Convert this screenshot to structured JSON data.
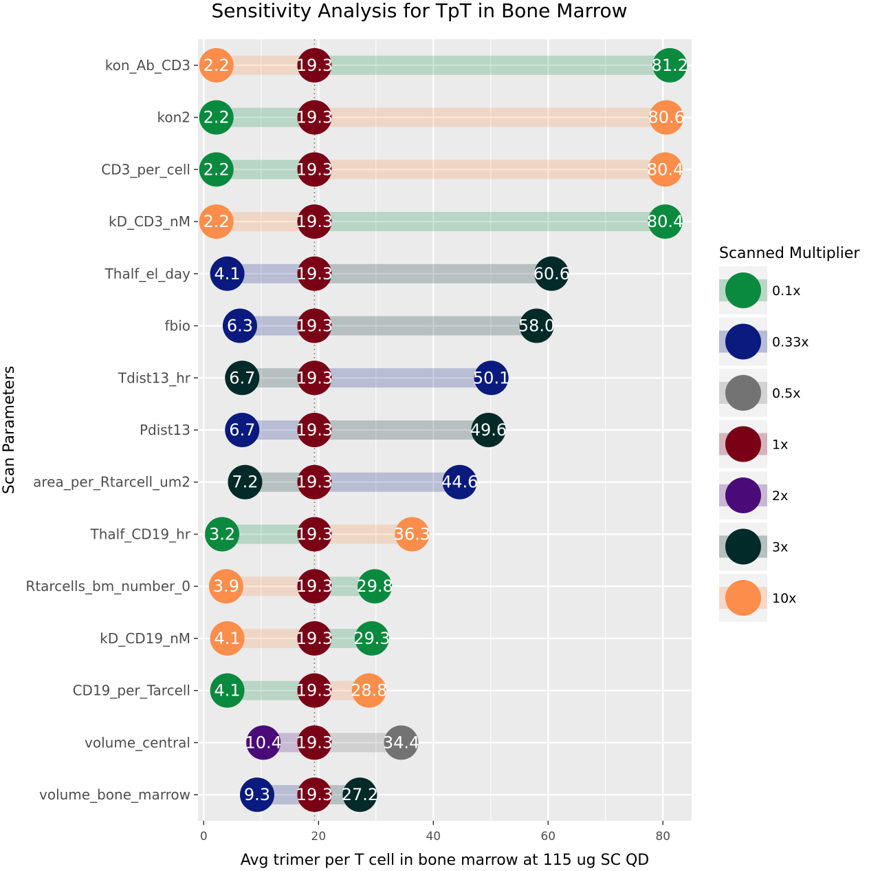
{
  "chart_data": {
    "type": "dumbbell",
    "title": "Sensitivity Analysis for TpT in Bone Marrow",
    "xlabel": "Avg trimer per T cell in bone marrow at 115 ug SC QD",
    "ylabel": "Scan Parameters",
    "xlim": [
      -1,
      85
    ],
    "xticks": [
      0,
      20,
      40,
      60,
      80
    ],
    "reference_line": 19.3,
    "grid": true,
    "legend_position": "right",
    "legend": {
      "title": "Scanned Multiplier",
      "entries": [
        {
          "label": "0.1x",
          "color": "#0a8a3e"
        },
        {
          "label": "0.33x",
          "color": "#0a1a7e"
        },
        {
          "label": "0.5x",
          "color": "#737373"
        },
        {
          "label": "1x",
          "color": "#7a0016"
        },
        {
          "label": "2x",
          "color": "#4a0a78"
        },
        {
          "label": "3x",
          "color": "#012a28"
        },
        {
          "label": "10x",
          "color": "#fc8d4b"
        }
      ]
    },
    "rows": [
      {
        "param": "kon_Ab_CD3",
        "low": {
          "value": 2.2,
          "label": "2.2",
          "mult": "10x"
        },
        "base": {
          "value": 19.3,
          "label": "19.3"
        },
        "high": {
          "value": 81.2,
          "label": "81.2",
          "mult": "0.1x"
        }
      },
      {
        "param": "kon2",
        "low": {
          "value": 2.2,
          "label": "2.2",
          "mult": "0.1x"
        },
        "base": {
          "value": 19.3,
          "label": "19.3"
        },
        "high": {
          "value": 80.6,
          "label": "80.6",
          "mult": "10x"
        }
      },
      {
        "param": "CD3_per_cell",
        "low": {
          "value": 2.2,
          "label": "2.2",
          "mult": "0.1x"
        },
        "base": {
          "value": 19.3,
          "label": "19.3"
        },
        "high": {
          "value": 80.4,
          "label": "80.4",
          "mult": "10x"
        }
      },
      {
        "param": "kD_CD3_nM",
        "low": {
          "value": 2.2,
          "label": "2.2",
          "mult": "10x"
        },
        "base": {
          "value": 19.3,
          "label": "19.3"
        },
        "high": {
          "value": 80.4,
          "label": "80.4",
          "mult": "0.1x"
        }
      },
      {
        "param": "Thalf_el_day",
        "low": {
          "value": 4.1,
          "label": "4.1",
          "mult": "0.33x"
        },
        "base": {
          "value": 19.3,
          "label": "19.3"
        },
        "high": {
          "value": 60.6,
          "label": "60.6",
          "mult": "3x"
        }
      },
      {
        "param": "fbio",
        "low": {
          "value": 6.3,
          "label": "6.3",
          "mult": "0.33x"
        },
        "base": {
          "value": 19.3,
          "label": "19.3"
        },
        "high": {
          "value": 58.0,
          "label": "58.0",
          "mult": "3x"
        }
      },
      {
        "param": "Tdist13_hr",
        "low": {
          "value": 6.7,
          "label": "6.7",
          "mult": "3x"
        },
        "base": {
          "value": 19.3,
          "label": "19.3"
        },
        "high": {
          "value": 50.1,
          "label": "50.1",
          "mult": "0.33x"
        }
      },
      {
        "param": "Pdist13",
        "low": {
          "value": 6.7,
          "label": "6.7",
          "mult": "0.33x"
        },
        "base": {
          "value": 19.3,
          "label": "19.3"
        },
        "high": {
          "value": 49.6,
          "label": "49.6",
          "mult": "3x"
        }
      },
      {
        "param": "area_per_Rtarcell_um2",
        "low": {
          "value": 7.2,
          "label": "7.2",
          "mult": "3x"
        },
        "base": {
          "value": 19.3,
          "label": "19.3"
        },
        "high": {
          "value": 44.6,
          "label": "44.6",
          "mult": "0.33x"
        }
      },
      {
        "param": "Thalf_CD19_hr",
        "low": {
          "value": 3.2,
          "label": "3.2",
          "mult": "0.1x"
        },
        "base": {
          "value": 19.3,
          "label": "19.3"
        },
        "high": {
          "value": 36.3,
          "label": "36.3",
          "mult": "10x"
        }
      },
      {
        "param": "Rtarcells_bm_number_0",
        "low": {
          "value": 3.9,
          "label": "3.9",
          "mult": "10x"
        },
        "base": {
          "value": 19.3,
          "label": "19.3"
        },
        "high": {
          "value": 29.8,
          "label": "29.8",
          "mult": "0.1x"
        }
      },
      {
        "param": "kD_CD19_nM",
        "low": {
          "value": 4.1,
          "label": "4.1",
          "mult": "10x"
        },
        "base": {
          "value": 19.3,
          "label": "19.3"
        },
        "high": {
          "value": 29.3,
          "label": "29.3",
          "mult": "0.1x"
        }
      },
      {
        "param": "CD19_per_Tarcell",
        "low": {
          "value": 4.1,
          "label": "4.1",
          "mult": "0.1x"
        },
        "base": {
          "value": 19.3,
          "label": "19.3"
        },
        "high": {
          "value": 28.8,
          "label": "28.8",
          "mult": "10x"
        }
      },
      {
        "param": "volume_central",
        "low": {
          "value": 10.4,
          "label": "10.4",
          "mult": "2x"
        },
        "base": {
          "value": 19.3,
          "label": "19.3"
        },
        "high": {
          "value": 34.4,
          "label": "34.4",
          "mult": "0.5x"
        }
      },
      {
        "param": "volume_bone_marrow",
        "low": {
          "value": 9.3,
          "label": "9.3",
          "mult": "0.33x"
        },
        "base": {
          "value": 19.3,
          "label": "19.3"
        },
        "high": {
          "value": 27.2,
          "label": "27.2",
          "mult": "3x"
        }
      }
    ]
  }
}
